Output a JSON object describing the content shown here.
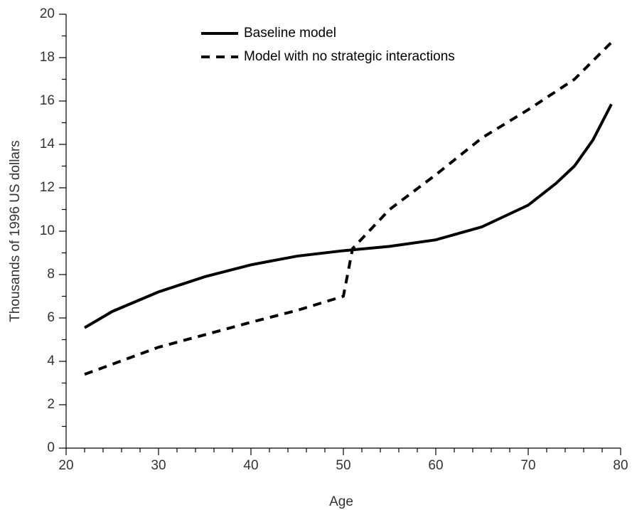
{
  "chart_data": {
    "type": "line",
    "x_label": "Age",
    "y_label": "Thousands of 1996 US dollars",
    "xlim": [
      20,
      80
    ],
    "xticks": [
      20,
      30,
      40,
      50,
      60,
      70,
      80
    ],
    "x_minor_ticks": [
      22,
      24,
      26,
      28,
      32,
      34,
      36,
      38,
      42,
      44,
      46,
      48,
      52,
      54,
      56,
      58,
      62,
      64,
      66,
      68,
      72,
      74,
      76,
      78
    ],
    "ylim": [
      0,
      20
    ],
    "yticks": [
      0,
      2,
      4,
      6,
      8,
      10,
      12,
      14,
      16,
      18,
      20
    ],
    "y_minor_ticks": [
      1,
      3,
      5,
      7,
      9,
      11,
      13,
      15,
      17,
      19
    ],
    "legend": "top",
    "series": [
      {
        "name": "Baseline model",
        "color": "#000000",
        "dash": "solid",
        "x": [
          22,
          25,
          30,
          35,
          40,
          45,
          50,
          55,
          60,
          65,
          70,
          73,
          75,
          77,
          79
        ],
        "values": [
          5.55,
          6.3,
          7.2,
          7.9,
          8.45,
          8.85,
          9.1,
          9.3,
          9.6,
          10.2,
          11.2,
          12.2,
          13.0,
          14.2,
          15.85
        ]
      },
      {
        "name": "Model with no strategic interactions",
        "color": "#000000",
        "dash": "dashed",
        "x": [
          22,
          30,
          40,
          45,
          50,
          51,
          55,
          60,
          65,
          70,
          75,
          79
        ],
        "values": [
          3.4,
          4.65,
          5.8,
          6.35,
          7.0,
          9.2,
          11.0,
          12.6,
          14.3,
          15.6,
          17.0,
          18.7
        ]
      }
    ]
  }
}
